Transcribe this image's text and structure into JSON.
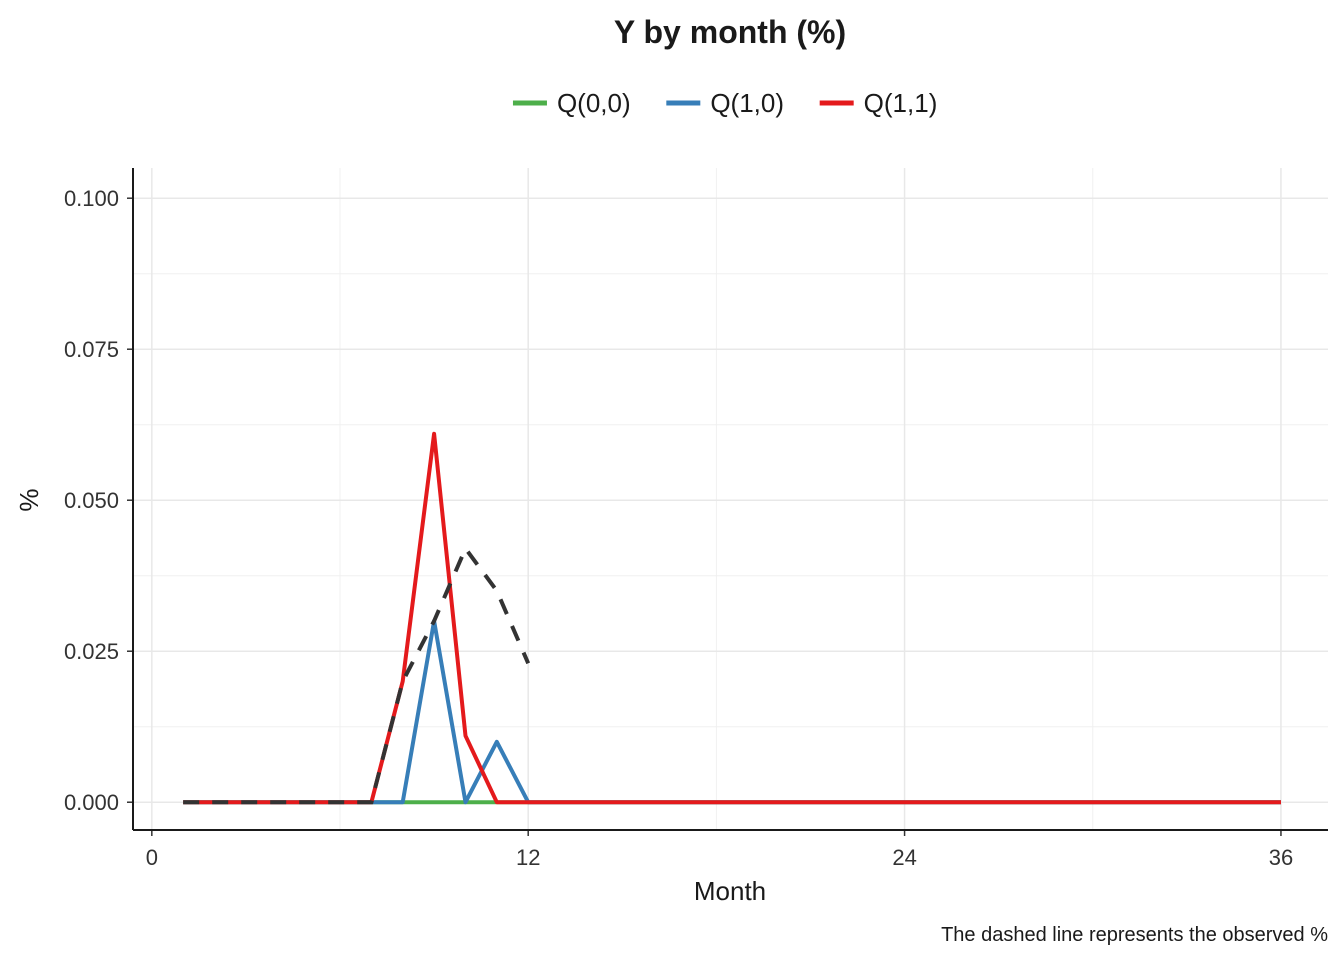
{
  "chart_data": {
    "type": "line",
    "title": "Y by month (%)",
    "xlabel": "Month",
    "ylabel": "%",
    "caption": "The dashed line represents the observed %",
    "xlim": [
      -0.6,
      37.5
    ],
    "ylim": [
      -0.0046,
      0.105
    ],
    "x_ticks": [
      0,
      12,
      24,
      36
    ],
    "x_tick_labels": [
      "0",
      "12",
      "24",
      "36"
    ],
    "y_ticks": [
      0,
      0.025,
      0.05,
      0.075,
      0.1
    ],
    "y_tick_labels": [
      "0.000",
      "0.025",
      "0.050",
      "0.075",
      "0.100"
    ],
    "grid": true,
    "legend_position": "top",
    "series": [
      {
        "name": "Q(0,0)",
        "color": "#4daf4a",
        "x": [
          1,
          2,
          3,
          4,
          5,
          6,
          7,
          8,
          9,
          10,
          11,
          12,
          13,
          14,
          15,
          16,
          17,
          18,
          19,
          20,
          21,
          22,
          23,
          24,
          25,
          26,
          27,
          28,
          29,
          30,
          31,
          32,
          33,
          34,
          35,
          36
        ],
        "values": [
          0,
          0,
          0,
          0,
          0,
          0,
          0,
          0,
          0,
          0,
          0,
          0,
          0,
          0,
          0,
          0,
          0,
          0,
          0,
          0,
          0,
          0,
          0,
          0,
          0,
          0,
          0,
          0,
          0,
          0,
          0,
          0,
          0,
          0,
          0,
          0
        ]
      },
      {
        "name": "Q(1,0)",
        "color": "#377eb8",
        "x": [
          1,
          2,
          3,
          4,
          5,
          6,
          7,
          8,
          9,
          10,
          11,
          12,
          13,
          14,
          15,
          16,
          17,
          18,
          19,
          20,
          21,
          22,
          23,
          24,
          25,
          26,
          27,
          28,
          29,
          30,
          31,
          32,
          33,
          34,
          35,
          36
        ],
        "values": [
          0,
          0,
          0,
          0,
          0,
          0,
          0,
          0,
          0.03,
          0,
          0.01,
          0,
          0,
          0,
          0,
          0,
          0,
          0,
          0,
          0,
          0,
          0,
          0,
          0,
          0,
          0,
          0,
          0,
          0,
          0,
          0,
          0,
          0,
          0,
          0,
          0
        ]
      },
      {
        "name": "Q(1,1)",
        "color": "#e41a1c",
        "x": [
          1,
          2,
          3,
          4,
          5,
          6,
          7,
          8,
          9,
          10,
          11,
          12,
          13,
          14,
          15,
          16,
          17,
          18,
          19,
          20,
          21,
          22,
          23,
          24,
          25,
          26,
          27,
          28,
          29,
          30,
          31,
          32,
          33,
          34,
          35,
          36
        ],
        "values": [
          0,
          0,
          0,
          0,
          0,
          0,
          0,
          0.02,
          0.061,
          0.011,
          0,
          0,
          0,
          0,
          0,
          0,
          0,
          0,
          0,
          0,
          0,
          0,
          0,
          0,
          0,
          0,
          0,
          0,
          0,
          0,
          0,
          0,
          0,
          0,
          0,
          0
        ]
      }
    ],
    "observed": {
      "color": "#333333",
      "style": "dashed",
      "x": [
        1,
        2,
        3,
        4,
        5,
        6,
        7,
        8,
        9,
        10,
        11,
        12
      ],
      "values": [
        0,
        0,
        0,
        0,
        0,
        0,
        0,
        0.02,
        0.03,
        0.042,
        0.035,
        0.023
      ]
    }
  }
}
